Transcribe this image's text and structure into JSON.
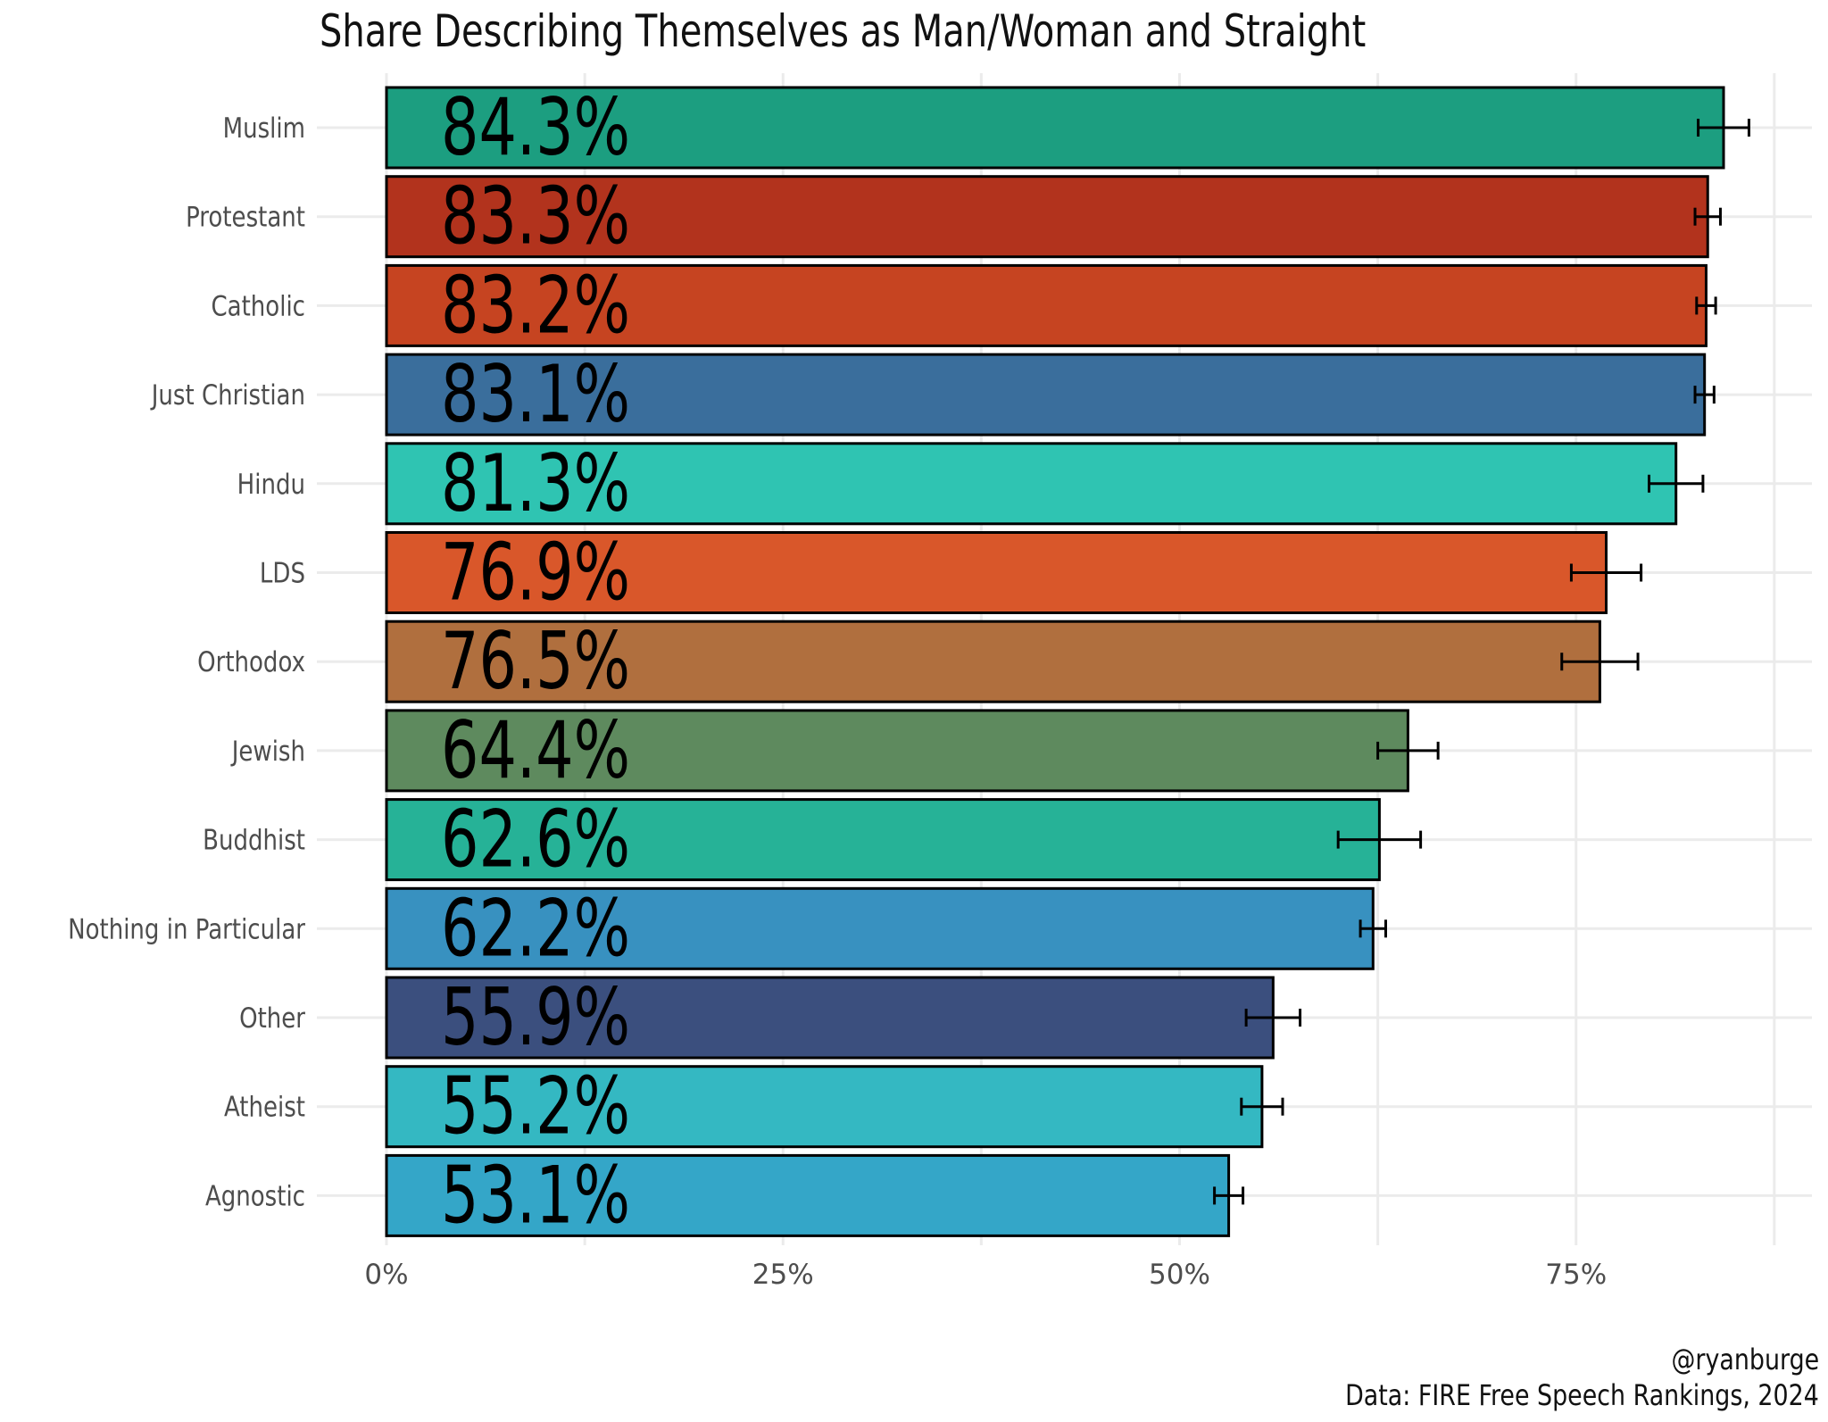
{
  "chart_data": {
    "type": "bar",
    "orientation": "horizontal",
    "title": "Share Describing Themselves as Man/Woman and Straight",
    "categories": [
      "Muslim",
      "Protestant",
      "Catholic",
      "Just Christian",
      "Hindu",
      "LDS",
      "Orthodox",
      "Jewish",
      "Buddhist",
      "Nothing in Particular",
      "Other",
      "Atheist",
      "Agnostic"
    ],
    "values": [
      84.3,
      83.3,
      83.2,
      83.1,
      81.3,
      76.9,
      76.5,
      64.4,
      62.6,
      62.2,
      55.9,
      55.2,
      53.1
    ],
    "value_labels": [
      "84.3%",
      "83.3%",
      "83.2%",
      "83.1%",
      "81.3%",
      "76.9%",
      "76.5%",
      "64.4%",
      "62.6%",
      "62.2%",
      "55.9%",
      "55.2%",
      "53.1%"
    ],
    "error_low": [
      82.7,
      82.5,
      82.6,
      82.5,
      79.6,
      74.7,
      74.1,
      62.5,
      60.0,
      61.4,
      54.2,
      53.9,
      52.2
    ],
    "error_high": [
      85.9,
      84.1,
      83.8,
      83.7,
      83.0,
      79.1,
      78.9,
      66.3,
      65.2,
      63.0,
      57.6,
      56.5,
      54.0
    ],
    "colors": [
      "#1c9e80",
      "#b2331d",
      "#c64421",
      "#3a6e9c",
      "#2fc4b2",
      "#d9572a",
      "#b06f3e",
      "#5e8a5e",
      "#26b297",
      "#3891c0",
      "#3b4f7e",
      "#34b8c2",
      "#34a6c8"
    ],
    "xlim": [
      0,
      90
    ],
    "xticks": [
      0,
      25,
      50,
      75
    ],
    "xtick_labels": [
      "0%",
      "25%",
      "50%",
      "75%"
    ],
    "grid": true,
    "legend": "none"
  },
  "caption": {
    "author": "@ryanburge",
    "source": "Data: FIRE Free Speech Rankings, 2024"
  }
}
